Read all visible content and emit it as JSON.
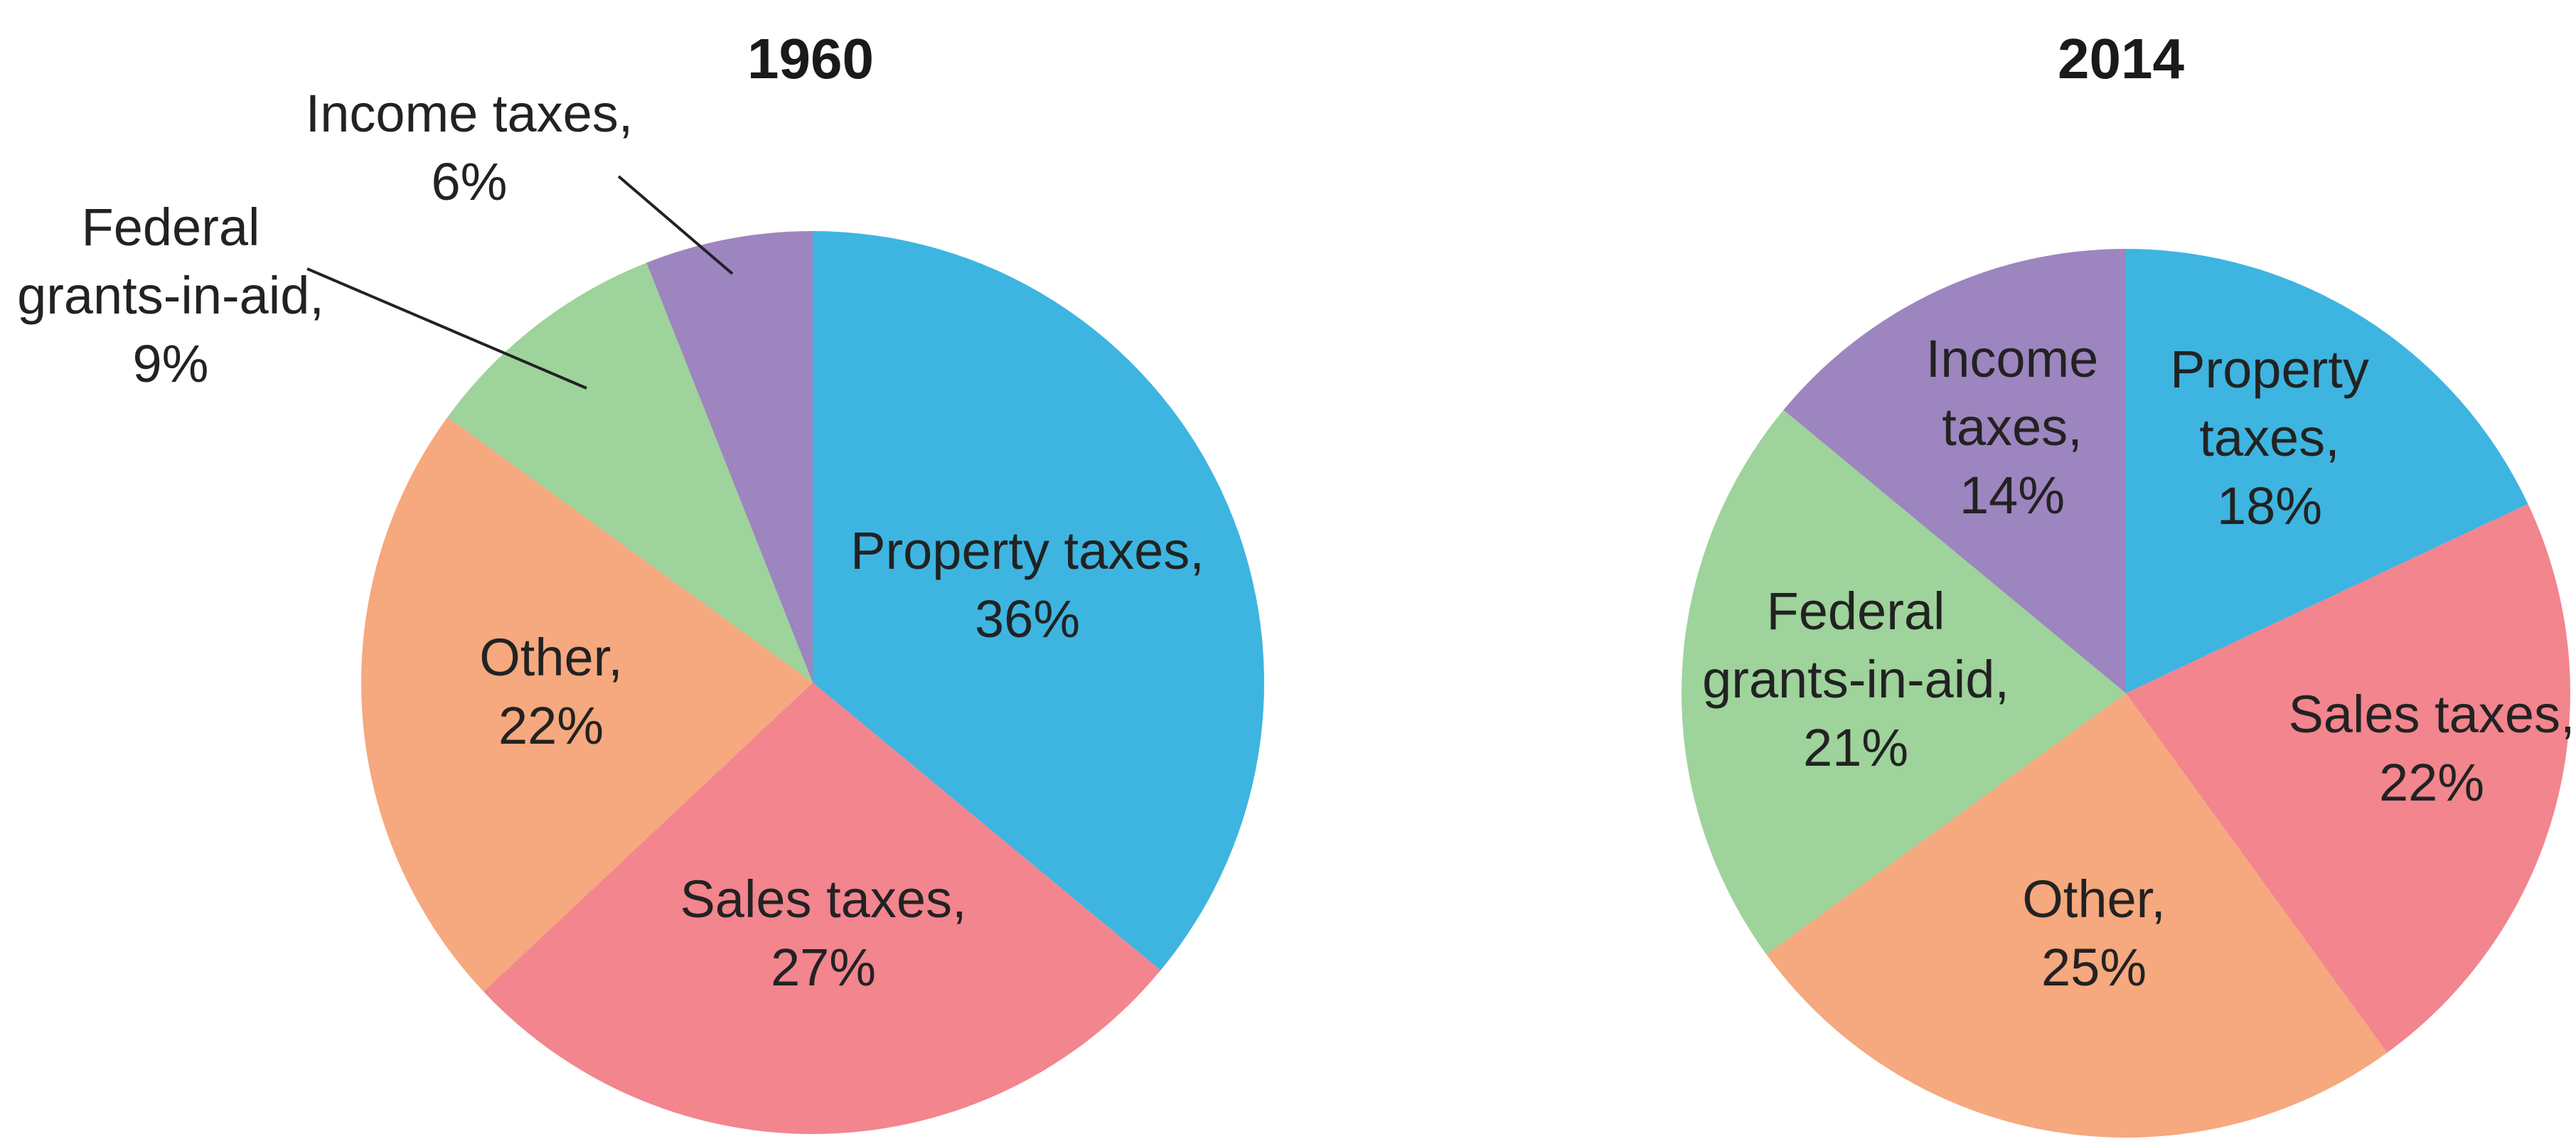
{
  "chart_data": [
    {
      "type": "pie",
      "title": "1960",
      "start_angle_deg": 0,
      "direction": "clockwise",
      "slices": [
        {
          "name": "Property taxes",
          "value": 36,
          "color": "#3db5e0",
          "label": [
            "Property taxes,",
            "36%"
          ]
        },
        {
          "name": "Sales taxes",
          "value": 27,
          "color": "#f2858e",
          "label": [
            "Sales taxes,",
            "27%"
          ]
        },
        {
          "name": "Other",
          "value": 22,
          "color": "#f6a87e",
          "label": [
            "Other,",
            "22%"
          ]
        },
        {
          "name": "Federal grants-in-aid",
          "value": 9,
          "color": "#9ed39b",
          "label": [
            "Federal",
            "grants-in-aid,",
            "9%"
          ]
        },
        {
          "name": "Income taxes",
          "value": 6,
          "color": "#9d85bf",
          "label": [
            "Income taxes,",
            "6%"
          ]
        }
      ]
    },
    {
      "type": "pie",
      "title": "2014",
      "start_angle_deg": 0,
      "direction": "clockwise",
      "slices": [
        {
          "name": "Property taxes",
          "value": 18,
          "color": "#3db5e0",
          "label": [
            "Property",
            "taxes,",
            "18%"
          ]
        },
        {
          "name": "Sales taxes",
          "value": 22,
          "color": "#f2858e",
          "label": [
            "Sales taxes,",
            "22%"
          ]
        },
        {
          "name": "Other",
          "value": 25,
          "color": "#f6a87e",
          "label": [
            "Other,",
            "25%"
          ]
        },
        {
          "name": "Federal grants-in-aid",
          "value": 21,
          "color": "#9ed39b",
          "label": [
            "Federal",
            "grants-in-aid,",
            "21%"
          ]
        },
        {
          "name": "Income taxes",
          "value": 14,
          "color": "#9d85bf",
          "label": [
            "Income",
            "taxes,",
            "14%"
          ]
        }
      ]
    }
  ]
}
